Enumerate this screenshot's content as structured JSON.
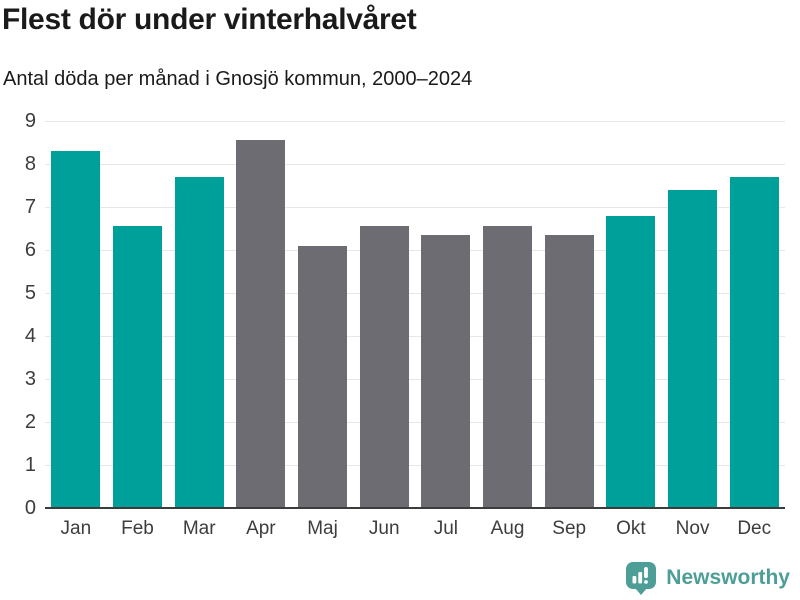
{
  "chart_data": {
    "type": "bar",
    "title": "Flest dör under vinterhalvåret",
    "subtitle": "Antal döda per månad i Gnosjö kommun, 2000–2024",
    "categories": [
      "Jan",
      "Feb",
      "Mar",
      "Apr",
      "Maj",
      "Jun",
      "Jul",
      "Aug",
      "Sep",
      "Okt",
      "Nov",
      "Dec"
    ],
    "values": [
      8.3,
      6.55,
      7.7,
      8.55,
      6.1,
      6.55,
      6.35,
      6.55,
      6.35,
      6.8,
      7.4,
      7.7
    ],
    "bar_colors": [
      "teal",
      "teal",
      "teal",
      "gray",
      "gray",
      "gray",
      "gray",
      "gray",
      "gray",
      "teal",
      "teal",
      "teal"
    ],
    "colors": {
      "teal": "#00a09a",
      "gray": "#6c6c72"
    },
    "xlabel": "",
    "ylabel": "",
    "ylim": [
      0,
      9
    ],
    "yticks": [
      0,
      1,
      2,
      3,
      4,
      5,
      6,
      7,
      8,
      9
    ],
    "grid": true,
    "legend": "none"
  },
  "footer": {
    "brand": "Newsworthy",
    "brand_color": "#4e9e98",
    "logo_icon": "newsworthy-logo-icon"
  }
}
